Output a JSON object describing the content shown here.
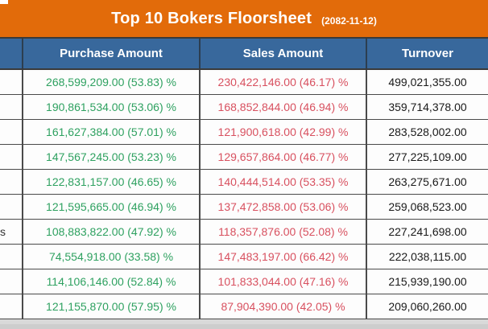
{
  "title_bar": {
    "title": "Top 10 Bokers Floorsheet",
    "date": "(2082-11-12)"
  },
  "table": {
    "columns": [
      "",
      "Purchase Amount",
      "Sales Amount",
      "Turnover"
    ],
    "rows": [
      {
        "broker": "",
        "purchase": "268,599,209.00 (53.83) %",
        "sales": "230,422,146.00 (46.17) %",
        "turnover": "499,021,355.00"
      },
      {
        "broker": "",
        "purchase": "190,861,534.00 (53.06) %",
        "sales": "168,852,844.00 (46.94) %",
        "turnover": "359,714,378.00"
      },
      {
        "broker": "",
        "purchase": "161,627,384.00 (57.01) %",
        "sales": "121,900,618.00 (42.99) %",
        "turnover": "283,528,002.00"
      },
      {
        "broker": "",
        "purchase": "147,567,245.00 (53.23) %",
        "sales": "129,657,864.00 (46.77) %",
        "turnover": "277,225,109.00"
      },
      {
        "broker": "",
        "purchase": "122,831,157.00 (46.65) %",
        "sales": "140,444,514.00 (53.35) %",
        "turnover": "263,275,671.00"
      },
      {
        "broker": "",
        "purchase": "121,595,665.00 (46.94) %",
        "sales": "137,472,858.00 (53.06) %",
        "turnover": "259,068,523.00"
      },
      {
        "broker": "s",
        "purchase": "108,883,822.00 (47.92) %",
        "sales": "118,357,876.00 (52.08) %",
        "turnover": "227,241,698.00"
      },
      {
        "broker": "",
        "purchase": "74,554,918.00 (33.58) %",
        "sales": "147,483,197.00 (66.42) %",
        "turnover": "222,038,115.00"
      },
      {
        "broker": "",
        "purchase": "114,106,146.00 (52.84) %",
        "sales": "101,833,044.00 (47.16) %",
        "turnover": "215,939,190.00"
      },
      {
        "broker": "",
        "purchase": "121,155,870.00 (57.95) %",
        "sales": "87,904,390.00 (42.05) %",
        "turnover": "209,060,260.00"
      }
    ]
  },
  "colors": {
    "accent_orange": "#e26b0a",
    "header_blue": "#38689c",
    "purchase_green": "#2ea160",
    "sales_red": "#d8505f",
    "turnover_black": "#1a1a1a"
  }
}
